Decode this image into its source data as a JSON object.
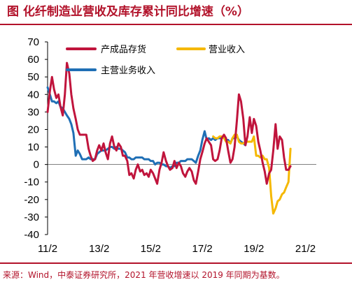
{
  "title": "图  化纤制造业营收及库存累计同比增速（%）",
  "source": "来源：Wind，中泰证券研究所，2021 年营收增速以 2019 年同期为基数。",
  "colors": {
    "inventory": "#c0143c",
    "revenue_op": "#f5b800",
    "revenue_main": "#1f6fb5",
    "accent": "#b2122a"
  },
  "chart_data": {
    "type": "line",
    "ylim": [
      -40,
      70
    ],
    "yticks": [
      70,
      60,
      50,
      40,
      30,
      20,
      10,
      0,
      -10,
      -20,
      -30,
      -40
    ],
    "xlim": [
      2011.08,
      2021.5
    ],
    "xticks": [
      {
        "label": "11/2",
        "x": 2011.08
      },
      {
        "label": "13/2",
        "x": 2013.08
      },
      {
        "label": "15/2",
        "x": 2015.08
      },
      {
        "label": "17/2",
        "x": 2017.08
      },
      {
        "label": "19/2",
        "x": 2019.08
      },
      {
        "label": "21/2",
        "x": 2021.08
      }
    ],
    "legend_position": "top-left",
    "series": [
      {
        "name": "产成品存货",
        "color": "#c0143c",
        "points": [
          [
            2011.08,
            30
          ],
          [
            2011.17,
            42
          ],
          [
            2011.25,
            50
          ],
          [
            2011.33,
            43
          ],
          [
            2011.42,
            38
          ],
          [
            2011.5,
            40
          ],
          [
            2011.58,
            33
          ],
          [
            2011.67,
            28
          ],
          [
            2011.75,
            40
          ],
          [
            2011.83,
            58
          ],
          [
            2011.92,
            52
          ],
          [
            2012.0,
            40
          ],
          [
            2012.08,
            32
          ],
          [
            2012.17,
            26
          ],
          [
            2012.25,
            20
          ],
          [
            2012.33,
            17
          ],
          [
            2012.42,
            17
          ],
          [
            2012.5,
            17
          ],
          [
            2012.58,
            17
          ],
          [
            2012.67,
            9
          ],
          [
            2012.75,
            5
          ],
          [
            2012.83,
            2
          ],
          [
            2012.92,
            3
          ],
          [
            2013.0,
            8
          ],
          [
            2013.08,
            11
          ],
          [
            2013.17,
            8
          ],
          [
            2013.25,
            12
          ],
          [
            2013.33,
            7
          ],
          [
            2013.42,
            3
          ],
          [
            2013.5,
            12
          ],
          [
            2013.58,
            16
          ],
          [
            2013.67,
            10
          ],
          [
            2013.75,
            8
          ],
          [
            2013.83,
            12
          ],
          [
            2013.92,
            10
          ],
          [
            2014.0,
            5
          ],
          [
            2014.08,
            5
          ],
          [
            2014.17,
            2
          ],
          [
            2014.25,
            -6
          ],
          [
            2014.33,
            -5
          ],
          [
            2014.42,
            -8
          ],
          [
            2014.5,
            -3
          ],
          [
            2014.58,
            0
          ],
          [
            2014.67,
            -4
          ],
          [
            2014.75,
            -3
          ],
          [
            2014.83,
            -6
          ],
          [
            2014.92,
            -5
          ],
          [
            2015.0,
            -7
          ],
          [
            2015.08,
            -3
          ],
          [
            2015.17,
            -5
          ],
          [
            2015.25,
            -8
          ],
          [
            2015.33,
            -11
          ],
          [
            2015.42,
            -3
          ],
          [
            2015.5,
            1
          ],
          [
            2015.58,
            7
          ],
          [
            2015.67,
            2
          ],
          [
            2015.75,
            -1
          ],
          [
            2015.83,
            -3
          ],
          [
            2015.92,
            -2
          ],
          [
            2016.0,
            2
          ],
          [
            2016.08,
            -2
          ],
          [
            2016.17,
            1
          ],
          [
            2016.25,
            -1
          ],
          [
            2016.33,
            -5
          ],
          [
            2016.42,
            -7
          ],
          [
            2016.5,
            -4
          ],
          [
            2016.58,
            -2
          ],
          [
            2016.67,
            -4
          ],
          [
            2016.75,
            -9
          ],
          [
            2016.83,
            -11
          ],
          [
            2016.92,
            -4
          ],
          [
            2017.0,
            3
          ],
          [
            2017.08,
            7
          ],
          [
            2017.17,
            12
          ],
          [
            2017.25,
            15
          ],
          [
            2017.33,
            13
          ],
          [
            2017.42,
            11
          ],
          [
            2017.5,
            3
          ],
          [
            2017.58,
            2
          ],
          [
            2017.67,
            3
          ],
          [
            2017.75,
            8
          ],
          [
            2017.83,
            15
          ],
          [
            2017.92,
            17
          ],
          [
            2018.0,
            15
          ],
          [
            2018.08,
            8
          ],
          [
            2018.17,
            1
          ],
          [
            2018.25,
            3
          ],
          [
            2018.33,
            10
          ],
          [
            2018.42,
            25
          ],
          [
            2018.5,
            40
          ],
          [
            2018.58,
            36
          ],
          [
            2018.67,
            26
          ],
          [
            2018.75,
            11
          ],
          [
            2018.83,
            16
          ],
          [
            2018.92,
            27
          ],
          [
            2019.0,
            18
          ],
          [
            2019.08,
            26
          ],
          [
            2019.17,
            22
          ],
          [
            2019.25,
            13
          ],
          [
            2019.33,
            8
          ],
          [
            2019.42,
            1
          ],
          [
            2019.5,
            -4
          ],
          [
            2019.58,
            -11
          ],
          [
            2019.67,
            -5
          ],
          [
            2019.75,
            -3
          ],
          [
            2019.83,
            8
          ],
          [
            2019.92,
            23
          ],
          [
            2020.0,
            9
          ],
          [
            2020.08,
            16
          ],
          [
            2020.17,
            14
          ],
          [
            2020.25,
            4
          ],
          [
            2020.33,
            -3
          ],
          [
            2020.42,
            -3
          ],
          [
            2020.5,
            -1
          ]
        ]
      },
      {
        "name": "营业收入",
        "color": "#f5b800",
        "points": [
          [
            2017.5,
            16
          ],
          [
            2017.58,
            15
          ],
          [
            2017.67,
            15
          ],
          [
            2017.75,
            16
          ],
          [
            2017.83,
            16
          ],
          [
            2017.92,
            15
          ],
          [
            2018.0,
            13
          ],
          [
            2018.08,
            13
          ],
          [
            2018.17,
            12
          ],
          [
            2018.25,
            15
          ],
          [
            2018.33,
            17
          ],
          [
            2018.42,
            17
          ],
          [
            2018.5,
            13
          ],
          [
            2018.58,
            12
          ],
          [
            2018.67,
            12
          ],
          [
            2018.75,
            13
          ],
          [
            2018.83,
            13
          ],
          [
            2018.92,
            13
          ],
          [
            2019.0,
            13
          ],
          [
            2019.08,
            16
          ],
          [
            2019.17,
            5
          ],
          [
            2019.25,
            5
          ],
          [
            2019.33,
            4
          ],
          [
            2019.42,
            5
          ],
          [
            2019.5,
            3
          ],
          [
            2019.58,
            3
          ],
          [
            2019.67,
            -2
          ],
          [
            2019.75,
            -18
          ],
          [
            2019.83,
            -28
          ],
          [
            2019.92,
            -25
          ],
          [
            2020.0,
            -21
          ],
          [
            2020.08,
            -20
          ],
          [
            2020.17,
            -17
          ],
          [
            2020.25,
            -16
          ],
          [
            2020.33,
            -13
          ],
          [
            2020.42,
            -10
          ],
          [
            2020.5,
            9
          ]
        ]
      },
      {
        "name": "主营业务收入",
        "color": "#1f6fb5",
        "points": [
          [
            2011.08,
            44
          ],
          [
            2011.17,
            40
          ],
          [
            2011.25,
            36
          ],
          [
            2011.33,
            36
          ],
          [
            2011.42,
            35
          ],
          [
            2011.5,
            36
          ],
          [
            2011.58,
            33
          ],
          [
            2011.67,
            32
          ],
          [
            2011.75,
            30
          ],
          [
            2011.83,
            28
          ],
          [
            2011.92,
            26
          ],
          [
            2012.0,
            23
          ],
          [
            2012.08,
            18
          ],
          [
            2012.17,
            5
          ],
          [
            2012.25,
            8
          ],
          [
            2012.33,
            6
          ],
          [
            2012.42,
            3
          ],
          [
            2012.5,
            3
          ],
          [
            2012.58,
            3
          ],
          [
            2012.67,
            4
          ],
          [
            2012.75,
            3
          ],
          [
            2012.83,
            3
          ],
          [
            2012.92,
            3
          ],
          [
            2013.0,
            6
          ],
          [
            2013.08,
            7
          ],
          [
            2013.17,
            8
          ],
          [
            2013.25,
            8
          ],
          [
            2013.33,
            8
          ],
          [
            2013.42,
            9
          ],
          [
            2013.5,
            10
          ],
          [
            2013.58,
            10
          ],
          [
            2013.67,
            9
          ],
          [
            2013.75,
            10
          ],
          [
            2013.83,
            9
          ],
          [
            2013.92,
            9
          ],
          [
            2014.0,
            8
          ],
          [
            2014.08,
            7
          ],
          [
            2014.17,
            4
          ],
          [
            2014.25,
            4
          ],
          [
            2014.33,
            3
          ],
          [
            2014.42,
            3
          ],
          [
            2014.5,
            4
          ],
          [
            2014.58,
            4
          ],
          [
            2014.67,
            4
          ],
          [
            2014.75,
            4
          ],
          [
            2014.83,
            3
          ],
          [
            2014.92,
            3
          ],
          [
            2015.0,
            3
          ],
          [
            2015.08,
            2
          ],
          [
            2015.17,
            2
          ],
          [
            2015.25,
            0
          ],
          [
            2015.33,
            1
          ],
          [
            2015.42,
            1
          ],
          [
            2015.5,
            0
          ],
          [
            2015.58,
            0
          ],
          [
            2015.67,
            -1
          ],
          [
            2015.75,
            -1
          ],
          [
            2015.83,
            -2
          ],
          [
            2015.92,
            -1
          ],
          [
            2016.0,
            -1
          ],
          [
            2016.08,
            1
          ],
          [
            2016.17,
            1
          ],
          [
            2016.25,
            2
          ],
          [
            2016.33,
            2
          ],
          [
            2016.42,
            2
          ],
          [
            2016.5,
            3
          ],
          [
            2016.58,
            3
          ],
          [
            2016.67,
            3
          ],
          [
            2016.75,
            2
          ],
          [
            2016.83,
            1
          ],
          [
            2016.92,
            5
          ],
          [
            2017.0,
            8
          ],
          [
            2017.08,
            14
          ],
          [
            2017.17,
            19
          ],
          [
            2017.25,
            14
          ],
          [
            2017.33,
            15
          ],
          [
            2017.42,
            14
          ],
          [
            2017.5,
            15
          ],
          [
            2017.58,
            14
          ],
          [
            2017.67,
            15
          ],
          [
            2017.75,
            15
          ],
          [
            2017.83,
            15
          ],
          [
            2017.92,
            16
          ],
          [
            2018.0,
            14
          ],
          [
            2018.08,
            14
          ],
          [
            2018.17,
            12
          ],
          [
            2018.25,
            15
          ],
          [
            2018.33,
            15
          ],
          [
            2018.42,
            16
          ],
          [
            2018.5,
            14
          ],
          [
            2018.58,
            13
          ],
          [
            2018.67,
            12
          ],
          [
            2018.75,
            11
          ]
        ]
      }
    ]
  }
}
